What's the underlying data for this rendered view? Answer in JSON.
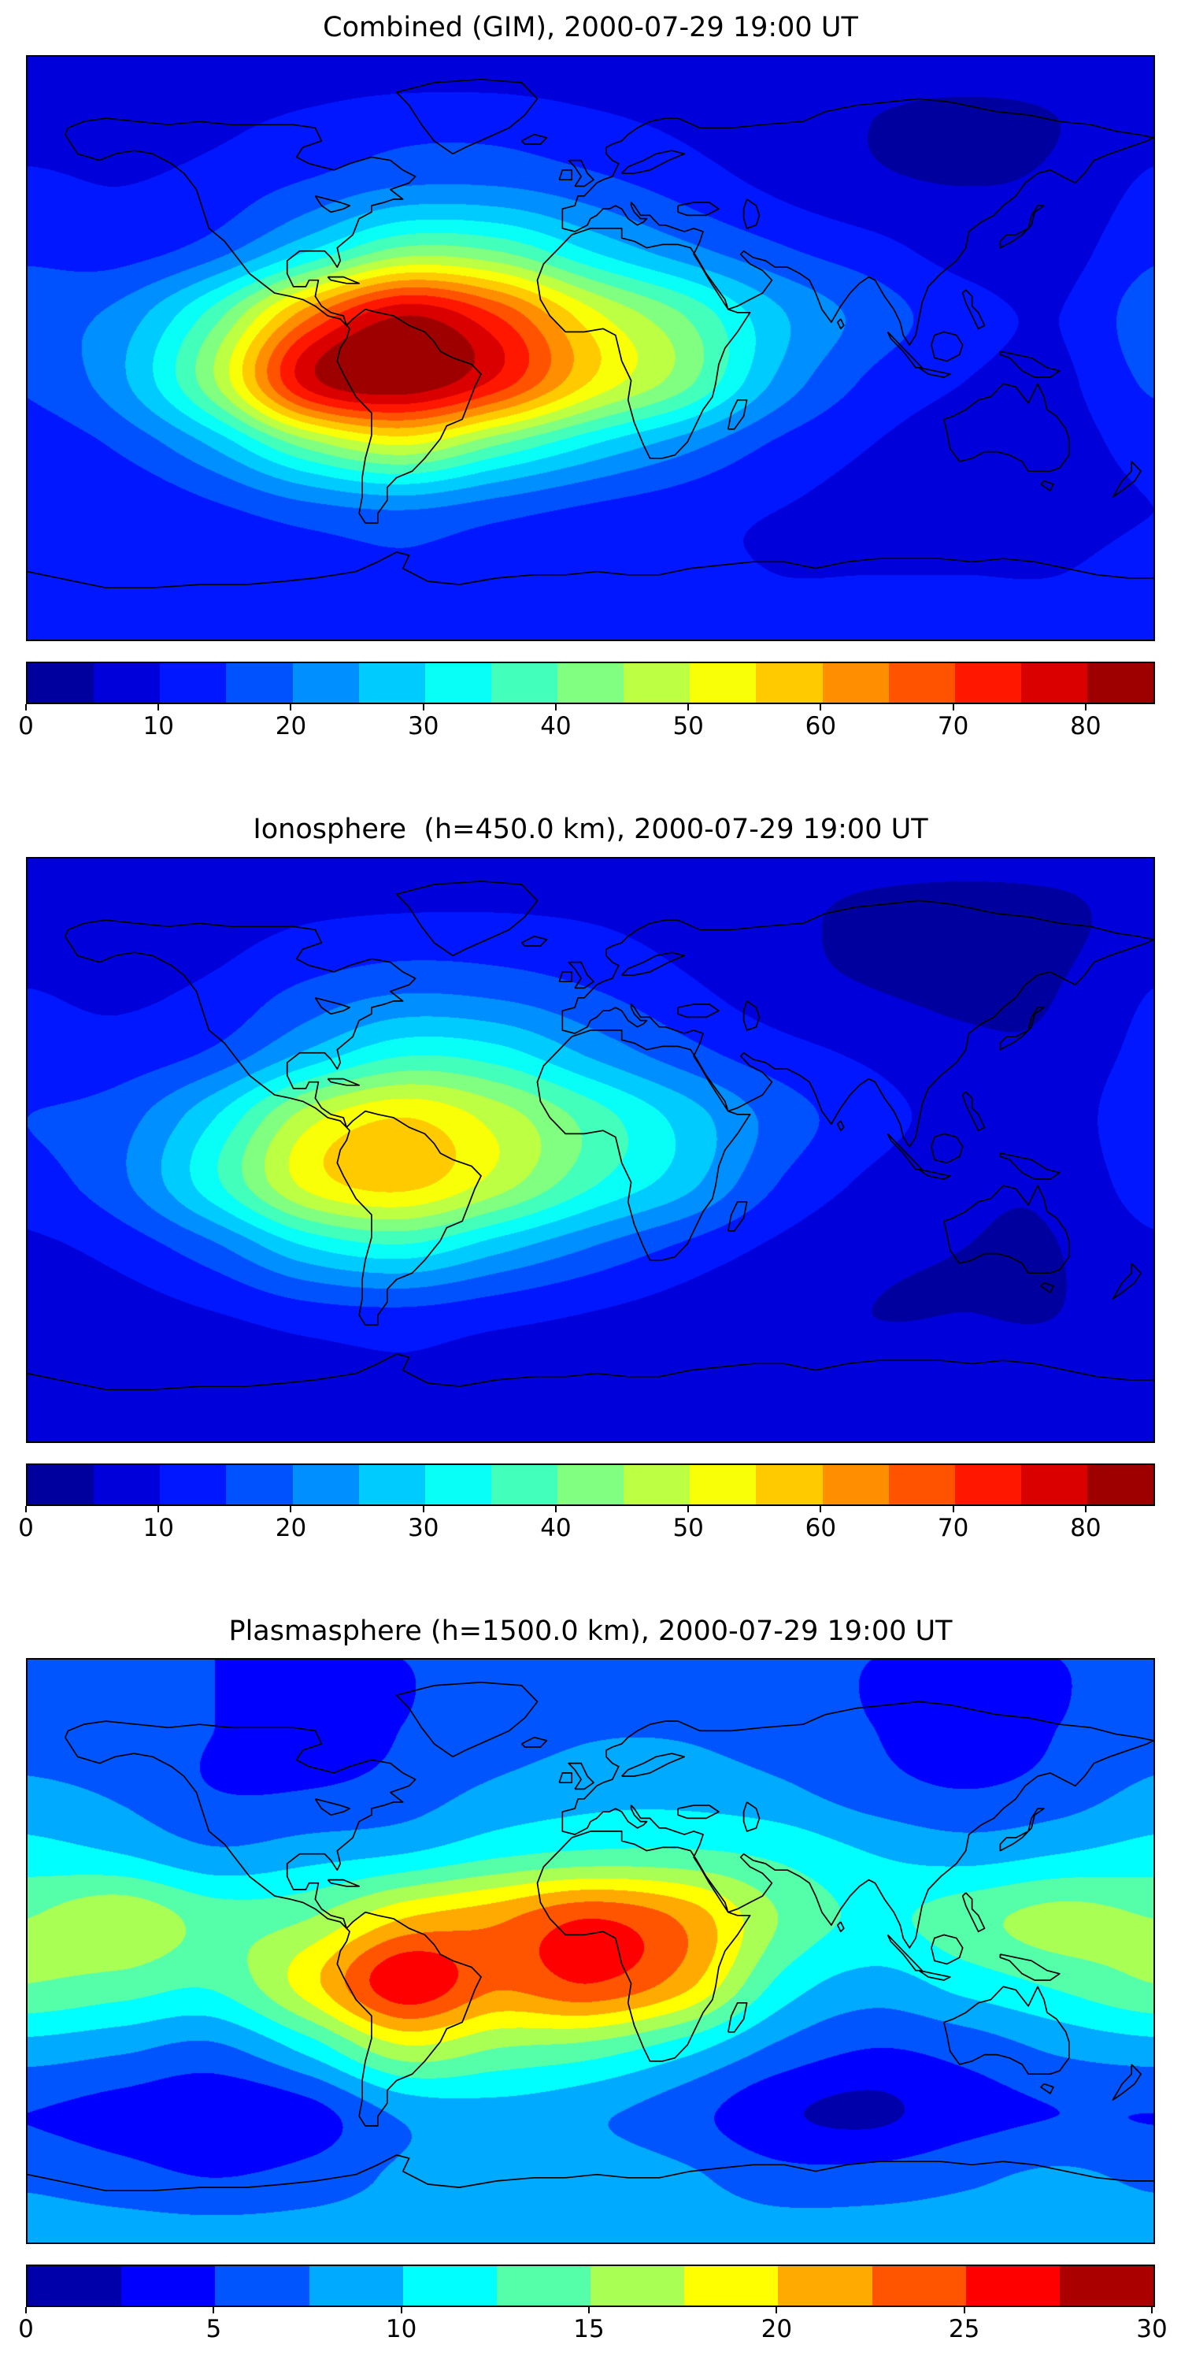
{
  "figure": {
    "background": "#ffffff",
    "colormap": "jet",
    "panel_count": 3
  },
  "chart_data": [
    {
      "type": "heatmap",
      "title": "Combined (GIM), 2000-07-29 19:00 UT",
      "projection": "equirectangular",
      "lon_range": [
        -180,
        180
      ],
      "lat_range": [
        -90,
        90
      ],
      "grid_lon": [
        -180,
        -150,
        -120,
        -90,
        -60,
        -30,
        0,
        30,
        60,
        90,
        120,
        150,
        180
      ],
      "grid_lat": [
        90,
        70,
        50,
        30,
        10,
        -10,
        -30,
        -50,
        -70,
        -90
      ],
      "values": [
        [
          7,
          7,
          7,
          7,
          7,
          7,
          7,
          7,
          7,
          7,
          7,
          7,
          7
        ],
        [
          8,
          8,
          9,
          11,
          13,
          13,
          11,
          9,
          7,
          5,
          4,
          5,
          8
        ],
        [
          11,
          10,
          12,
          16,
          20,
          20,
          17,
          13,
          9,
          6,
          5,
          6,
          11
        ],
        [
          14,
          13,
          18,
          30,
          42,
          40,
          30,
          22,
          16,
          12,
          8,
          8,
          14
        ],
        [
          18,
          22,
          38,
          64,
          80,
          70,
          52,
          40,
          26,
          18,
          12,
          10,
          18
        ],
        [
          16,
          24,
          45,
          78,
          85,
          74,
          55,
          42,
          24,
          14,
          10,
          9,
          16
        ],
        [
          12,
          16,
          26,
          42,
          50,
          40,
          30,
          22,
          14,
          10,
          8,
          8,
          12
        ],
        [
          10,
          11,
          14,
          18,
          20,
          17,
          14,
          12,
          10,
          9,
          8,
          8,
          10
        ],
        [
          12,
          12,
          12,
          13,
          14,
          13,
          12,
          11,
          10,
          10,
          10,
          10,
          12
        ],
        [
          12,
          12,
          12,
          12,
          12,
          12,
          12,
          12,
          12,
          12,
          12,
          12,
          12
        ]
      ],
      "colormap": "jet",
      "levels": {
        "min": 0,
        "max": 85,
        "step": 5
      },
      "colorbar_ticks": [
        0,
        10,
        20,
        30,
        40,
        50,
        60,
        70,
        80
      ],
      "colorbar_orientation": "horizontal",
      "grid_lines": false
    },
    {
      "type": "heatmap",
      "title": "Ionosphere  (h=450.0 km), 2000-07-29 19:00 UT",
      "projection": "equirectangular",
      "lon_range": [
        -180,
        180
      ],
      "lat_range": [
        -90,
        90
      ],
      "grid_lon": [
        -180,
        -150,
        -120,
        -90,
        -60,
        -30,
        0,
        30,
        60,
        90,
        120,
        150,
        180
      ],
      "grid_lat": [
        90,
        70,
        50,
        30,
        10,
        -10,
        -30,
        -50,
        -70,
        -90
      ],
      "values": [
        [
          6,
          6,
          6,
          6,
          6,
          6,
          6,
          6,
          6,
          6,
          6,
          6,
          6
        ],
        [
          7,
          7,
          8,
          10,
          11,
          11,
          10,
          8,
          6,
          4,
          3,
          4,
          7
        ],
        [
          10,
          9,
          11,
          16,
          19,
          18,
          15,
          11,
          7,
          5,
          4,
          5,
          10
        ],
        [
          12,
          12,
          16,
          26,
          34,
          32,
          24,
          17,
          12,
          9,
          6,
          6,
          12
        ],
        [
          15,
          18,
          30,
          48,
          55,
          48,
          38,
          28,
          18,
          12,
          8,
          7,
          15
        ],
        [
          13,
          19,
          34,
          52,
          57,
          48,
          36,
          27,
          15,
          9,
          6,
          6,
          13
        ],
        [
          9,
          12,
          19,
          30,
          34,
          27,
          20,
          14,
          9,
          6,
          5,
          5,
          9
        ],
        [
          7,
          8,
          10,
          13,
          14,
          12,
          10,
          8,
          6,
          5,
          5,
          5,
          7
        ],
        [
          7,
          7,
          7,
          8,
          9,
          8,
          8,
          7,
          6,
          6,
          6,
          6,
          7
        ],
        [
          7,
          7,
          7,
          7,
          7,
          7,
          7,
          7,
          7,
          7,
          7,
          7,
          7
        ]
      ],
      "colormap": "jet",
      "levels": {
        "min": 0,
        "max": 85,
        "step": 5
      },
      "colorbar_ticks": [
        0,
        10,
        20,
        30,
        40,
        50,
        60,
        70,
        80
      ],
      "colorbar_orientation": "horizontal",
      "grid_lines": false
    },
    {
      "type": "heatmap",
      "title": "Plasmasphere (h=1500.0 km), 2000-07-29 19:00 UT",
      "projection": "equirectangular",
      "lon_range": [
        -180,
        180
      ],
      "lat_range": [
        -90,
        90
      ],
      "grid_lon": [
        -180,
        -150,
        -120,
        -90,
        -60,
        -30,
        0,
        30,
        60,
        90,
        120,
        150,
        180
      ],
      "grid_lat": [
        90,
        70,
        50,
        30,
        10,
        -10,
        -30,
        -50,
        -70,
        -90
      ],
      "values": [
        [
          5,
          5,
          5,
          5,
          5,
          5,
          5,
          5,
          5,
          5,
          5,
          5,
          5
        ],
        [
          6,
          6,
          5,
          4,
          5,
          6,
          7,
          7,
          6,
          5,
          4,
          5,
          6
        ],
        [
          8,
          7,
          5,
          5,
          6,
          8,
          9,
          9,
          8,
          6,
          5,
          6,
          8
        ],
        [
          11,
          10,
          8,
          9,
          10,
          12,
          13,
          13,
          12,
          10,
          9,
          10,
          11
        ],
        [
          15,
          17,
          14,
          15,
          20,
          22,
          25,
          22,
          15,
          12,
          14,
          16,
          15
        ],
        [
          15,
          14,
          13,
          19,
          27,
          23,
          25,
          21,
          12,
          9,
          11,
          13,
          15
        ],
        [
          9,
          8,
          7,
          11,
          17,
          15,
          14,
          11,
          7,
          5,
          6,
          8,
          9
        ],
        [
          5,
          4,
          3,
          4,
          8,
          9,
          8,
          6,
          3,
          2,
          4,
          5,
          5
        ],
        [
          7,
          6,
          5,
          6,
          8,
          9,
          9,
          8,
          6,
          6,
          7,
          8,
          7
        ],
        [
          9,
          9,
          9,
          9,
          9,
          9,
          9,
          9,
          9,
          9,
          9,
          9,
          9
        ]
      ],
      "colormap": "jet",
      "levels": {
        "min": 0,
        "max": 30,
        "step": 2.5
      },
      "colorbar_ticks": [
        0,
        5,
        10,
        15,
        20,
        25,
        30
      ],
      "colorbar_orientation": "horizontal",
      "grid_lines": false
    }
  ]
}
